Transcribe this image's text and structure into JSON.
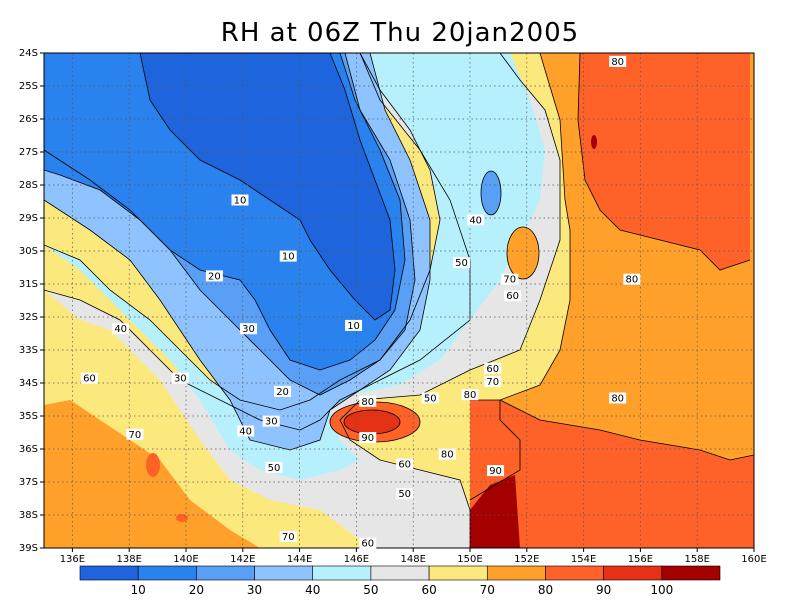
{
  "title": "RH at 06Z Thu 20jan2005",
  "map": {
    "lat_labels": [
      "24S",
      "25S",
      "26S",
      "27S",
      "28S",
      "29S",
      "30S",
      "31S",
      "32S",
      "33S",
      "34S",
      "35S",
      "36S",
      "37S",
      "38S",
      "39S"
    ],
    "lon_labels": [
      "136E",
      "138E",
      "140E",
      "142E",
      "144E",
      "146E",
      "148E",
      "150E",
      "152E",
      "154E",
      "156E",
      "158E",
      "160E"
    ],
    "contour_labels": [
      {
        "text": "80",
        "lon": 155.2,
        "lat": -24.3
      },
      {
        "text": "10",
        "lon": 141.9,
        "lat": -28.5
      },
      {
        "text": "40",
        "lon": 150.2,
        "lat": -29.1
      },
      {
        "text": "10",
        "lon": 143.6,
        "lat": -30.2
      },
      {
        "text": "50",
        "lon": 149.7,
        "lat": -30.4
      },
      {
        "text": "70",
        "lon": 151.4,
        "lat": -30.9
      },
      {
        "text": "20",
        "lon": 141.0,
        "lat": -30.8
      },
      {
        "text": "80",
        "lon": 155.7,
        "lat": -30.9
      },
      {
        "text": "60",
        "lon": 151.5,
        "lat": -31.4
      },
      {
        "text": "10",
        "lon": 145.9,
        "lat": -32.3
      },
      {
        "text": "30",
        "lon": 142.2,
        "lat": -32.4
      },
      {
        "text": "40",
        "lon": 137.7,
        "lat": -32.4
      },
      {
        "text": "60",
        "lon": 150.8,
        "lat": -33.6
      },
      {
        "text": "70",
        "lon": 150.8,
        "lat": -34.0
      },
      {
        "text": "60",
        "lon": 136.6,
        "lat": -33.9
      },
      {
        "text": "30",
        "lon": 139.8,
        "lat": -33.9
      },
      {
        "text": "20",
        "lon": 143.4,
        "lat": -34.3
      },
      {
        "text": "80",
        "lon": 150.0,
        "lat": -34.4
      },
      {
        "text": "50",
        "lon": 148.6,
        "lat": -34.5
      },
      {
        "text": "80",
        "lon": 155.2,
        "lat": -34.5
      },
      {
        "text": "80",
        "lon": 146.4,
        "lat": -34.6
      },
      {
        "text": "30",
        "lon": 143.0,
        "lat": -35.2
      },
      {
        "text": "70",
        "lon": 138.2,
        "lat": -35.6
      },
      {
        "text": "40",
        "lon": 142.1,
        "lat": -35.5
      },
      {
        "text": "90",
        "lon": 146.4,
        "lat": -35.7
      },
      {
        "text": "80",
        "lon": 149.2,
        "lat": -36.2
      },
      {
        "text": "90",
        "lon": 150.9,
        "lat": -36.7
      },
      {
        "text": "50",
        "lon": 143.1,
        "lat": -36.6
      },
      {
        "text": "60",
        "lon": 147.7,
        "lat": -36.5
      },
      {
        "text": "50",
        "lon": 147.7,
        "lat": -37.4
      },
      {
        "text": "70",
        "lon": 143.6,
        "lat": -38.7
      },
      {
        "text": "60",
        "lon": 146.4,
        "lat": -38.9
      }
    ]
  },
  "colorbar": {
    "colors": [
      "#1e64dc",
      "#2a82ee",
      "#5a9ff6",
      "#8ec3ff",
      "#b6f0fc",
      "#e6e6e6",
      "#fce97e",
      "#ffa02a",
      "#ff6228",
      "#e63214",
      "#a40000"
    ],
    "labels": [
      "10",
      "20",
      "30",
      "40",
      "50",
      "60",
      "70",
      "80",
      "90",
      "100"
    ]
  }
}
